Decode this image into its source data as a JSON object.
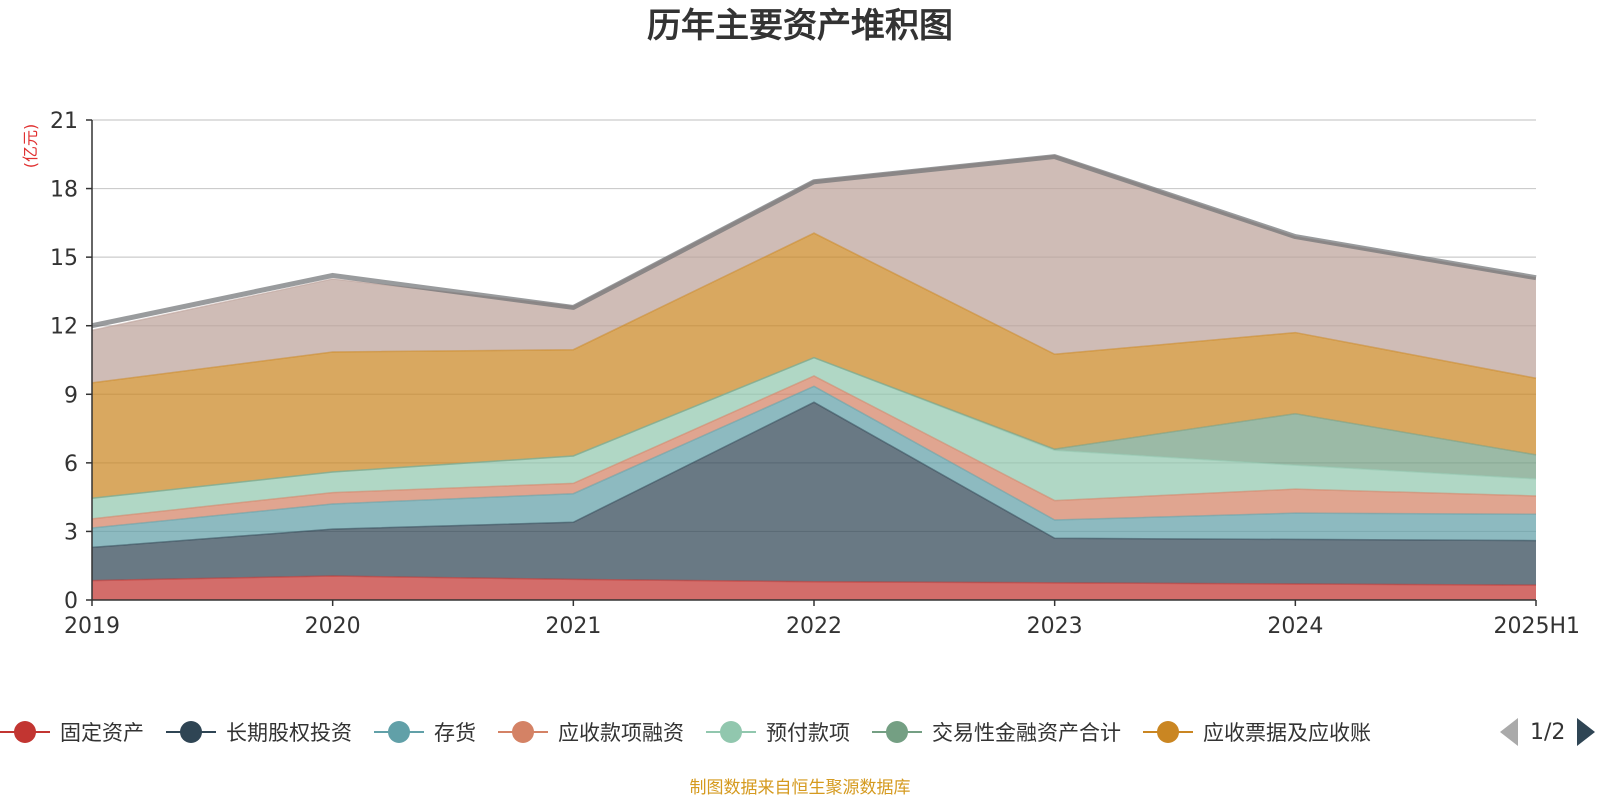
{
  "title": "历年主要资产堆积图",
  "source_note": "制图数据来自恒生聚源数据库",
  "pager": {
    "text": "1/2"
  },
  "chart_data": {
    "type": "area",
    "stacked": true,
    "title": "历年主要资产堆积图",
    "ylabel": "(亿元)",
    "categories": [
      "2019",
      "2020",
      "2021",
      "2022",
      "2023",
      "2024",
      "2025H1"
    ],
    "y_ticks": [
      "0",
      "3",
      "6",
      "9",
      "12",
      "15",
      "18",
      "21"
    ],
    "ylim": [
      0,
      21
    ],
    "grid": true,
    "legend_position": "bottom",
    "series": [
      {
        "name": "固定资产",
        "color": "#c23531",
        "values": [
          0.85,
          1.05,
          0.9,
          0.8,
          0.75,
          0.7,
          0.65
        ]
      },
      {
        "name": "长期股权投资",
        "color": "#2f4554",
        "values": [
          1.45,
          2.05,
          2.5,
          7.85,
          1.95,
          1.95,
          1.95
        ]
      },
      {
        "name": "存货",
        "color": "#61a0a8",
        "values": [
          0.85,
          1.1,
          1.25,
          0.7,
          0.8,
          1.15,
          1.15
        ]
      },
      {
        "name": "应收款项融资",
        "color": "#d48265",
        "values": [
          0.4,
          0.5,
          0.45,
          0.45,
          0.85,
          1.05,
          0.8
        ]
      },
      {
        "name": "预付款项",
        "color": "#91c7ae",
        "values": [
          0.9,
          0.9,
          1.2,
          0.8,
          2.2,
          1.05,
          0.75
        ]
      },
      {
        "name": "交易性金融资产合计",
        "color": "#749f83",
        "values": [
          0.0,
          0.0,
          0.0,
          0.0,
          0.05,
          2.25,
          1.05
        ]
      },
      {
        "name": "应收票据及应收账",
        "color": "#ca8622",
        "values": [
          5.05,
          5.25,
          4.65,
          5.45,
          4.15,
          3.55,
          3.35
        ]
      },
      {
        "name": "",
        "color": "#bda29a",
        "values": [
          2.3,
          3.2,
          1.9,
          2.3,
          8.7,
          4.2,
          4.4
        ]
      }
    ],
    "total": {
      "color": "#6e7074",
      "values": [
        12.0,
        14.2,
        12.8,
        18.3,
        19.4,
        15.9,
        14.1
      ]
    }
  }
}
